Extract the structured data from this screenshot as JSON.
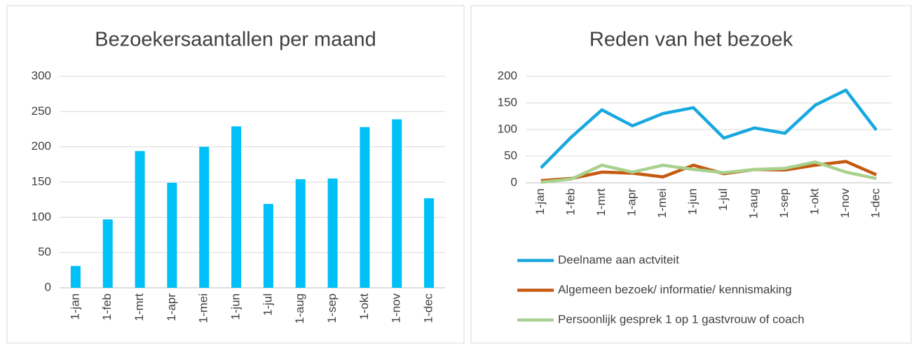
{
  "chart_data": [
    {
      "type": "bar",
      "title": "Bezoekersaantallen per maand",
      "categories": [
        "1-jan",
        "1-feb",
        "1-mrt",
        "1-apr",
        "1-mei",
        "1-jun",
        "1-jul",
        "1-aug",
        "1-sep",
        "1-okt",
        "1-nov",
        "1-dec"
      ],
      "values": [
        31,
        97,
        194,
        149,
        200,
        229,
        119,
        154,
        155,
        228,
        239,
        127
      ],
      "color": "#00c0f8",
      "ylim": [
        0,
        300
      ],
      "yticks": [
        0,
        50,
        100,
        150,
        200,
        250,
        300
      ],
      "grid": true
    },
    {
      "type": "line",
      "title": "Reden van het bezoek",
      "categories": [
        "1-jan",
        "1-feb",
        "1-mrt",
        "1-apr",
        "1-mei",
        "1-jun",
        "1-jul",
        "1-aug",
        "1-sep",
        "1-okt",
        "1-nov",
        "1-dec"
      ],
      "series": [
        {
          "name": "Deelname aan actviteit",
          "color": "#18a8e0",
          "values": [
            28,
            86,
            137,
            107,
            130,
            141,
            84,
            103,
            93,
            146,
            174,
            99
          ]
        },
        {
          "name": "Algemeen bezoek/ informatie/ kennismaking",
          "color": "#c55a11",
          "values": [
            4,
            8,
            20,
            18,
            11,
            33,
            17,
            25,
            24,
            33,
            40,
            15
          ]
        },
        {
          "name": "Persoonlijk gesprek 1 op 1 gastvrouw of coach",
          "color": "#a9d18e",
          "values": [
            1,
            7,
            33,
            20,
            33,
            25,
            19,
            25,
            27,
            39,
            20,
            8
          ]
        }
      ],
      "ylim": [
        0,
        200
      ],
      "yticks": [
        0,
        50,
        100,
        150,
        200
      ],
      "grid": true,
      "legend": "bottom"
    }
  ]
}
